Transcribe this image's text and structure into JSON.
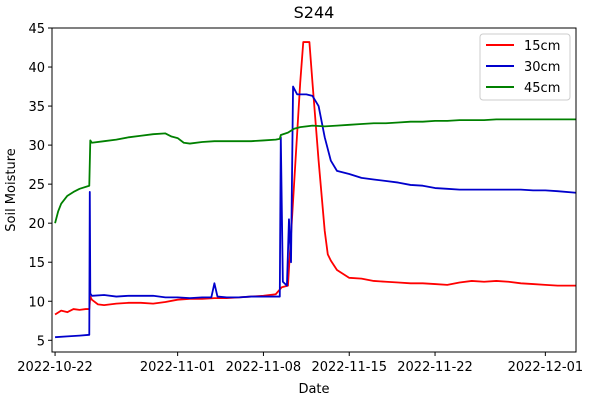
{
  "chart_data": {
    "type": "line",
    "title": "S244",
    "xlabel": "Date",
    "ylabel": "Soil Moisture",
    "x_axis_type": "date",
    "xlim": [
      "2022-10-21T18:00",
      "2022-12-03T12:00"
    ],
    "ylim": [
      3.5,
      45
    ],
    "x_ticks": [
      "2022-10-22",
      "2022-11-01",
      "2022-11-08",
      "2022-11-15",
      "2022-11-22",
      "2022-12-01"
    ],
    "y_ticks": [
      5,
      10,
      15,
      20,
      25,
      30,
      35,
      40,
      45
    ],
    "grid": false,
    "legend_position": "top-right",
    "series": [
      {
        "name": "15cm",
        "color": "#ff0000",
        "points": [
          [
            "2022-10-22T00:00",
            8.3
          ],
          [
            "2022-10-22T12:00",
            8.8
          ],
          [
            "2022-10-23T00:00",
            8.6
          ],
          [
            "2022-10-23T12:00",
            9.0
          ],
          [
            "2022-10-24T00:00",
            8.9
          ],
          [
            "2022-10-24T12:00",
            9.0
          ],
          [
            "2022-10-24T19:00",
            9.0
          ],
          [
            "2022-10-24T21:00",
            10.6
          ],
          [
            "2022-10-25T00:00",
            10.2
          ],
          [
            "2022-10-25T12:00",
            9.6
          ],
          [
            "2022-10-26T00:00",
            9.5
          ],
          [
            "2022-10-27T00:00",
            9.7
          ],
          [
            "2022-10-28T00:00",
            9.8
          ],
          [
            "2022-10-29T00:00",
            9.8
          ],
          [
            "2022-10-30T00:00",
            9.7
          ],
          [
            "2022-10-31T00:00",
            9.9
          ],
          [
            "2022-11-01T00:00",
            10.2
          ],
          [
            "2022-11-02T00:00",
            10.3
          ],
          [
            "2022-11-03T00:00",
            10.3
          ],
          [
            "2022-11-04T00:00",
            10.4
          ],
          [
            "2022-11-05T00:00",
            10.4
          ],
          [
            "2022-11-06T00:00",
            10.5
          ],
          [
            "2022-11-07T00:00",
            10.6
          ],
          [
            "2022-11-08T00:00",
            10.7
          ],
          [
            "2022-11-08T12:00",
            10.8
          ],
          [
            "2022-11-09T00:00",
            10.9
          ],
          [
            "2022-11-09T12:00",
            11.8
          ],
          [
            "2022-11-10T00:00",
            12.0
          ],
          [
            "2022-11-10T12:00",
            25.0
          ],
          [
            "2022-11-11T00:00",
            38.0
          ],
          [
            "2022-11-11T06:00",
            43.2
          ],
          [
            "2022-11-11T18:00",
            43.2
          ],
          [
            "2022-11-12T00:00",
            38.0
          ],
          [
            "2022-11-12T12:00",
            28.0
          ],
          [
            "2022-11-13T00:00",
            19.0
          ],
          [
            "2022-11-13T06:00",
            16.0
          ],
          [
            "2022-11-13T12:00",
            15.2
          ],
          [
            "2022-11-14T00:00",
            14.0
          ],
          [
            "2022-11-15T00:00",
            13.0
          ],
          [
            "2022-11-16T00:00",
            12.9
          ],
          [
            "2022-11-17T00:00",
            12.6
          ],
          [
            "2022-11-18T00:00",
            12.5
          ],
          [
            "2022-11-19T00:00",
            12.4
          ],
          [
            "2022-11-20T00:00",
            12.3
          ],
          [
            "2022-11-21T00:00",
            12.3
          ],
          [
            "2022-11-22T00:00",
            12.2
          ],
          [
            "2022-11-23T00:00",
            12.1
          ],
          [
            "2022-11-24T00:00",
            12.4
          ],
          [
            "2022-11-25T00:00",
            12.6
          ],
          [
            "2022-11-26T00:00",
            12.5
          ],
          [
            "2022-11-27T00:00",
            12.6
          ],
          [
            "2022-11-28T00:00",
            12.5
          ],
          [
            "2022-11-29T00:00",
            12.3
          ],
          [
            "2022-11-30T00:00",
            12.2
          ],
          [
            "2022-12-01T00:00",
            12.1
          ],
          [
            "2022-12-02T00:00",
            12.0
          ],
          [
            "2022-12-03T12:00",
            12.0
          ]
        ]
      },
      {
        "name": "30cm",
        "color": "#0000cc",
        "points": [
          [
            "2022-10-22T00:00",
            5.4
          ],
          [
            "2022-10-23T00:00",
            5.5
          ],
          [
            "2022-10-24T00:00",
            5.6
          ],
          [
            "2022-10-24T19:00",
            5.7
          ],
          [
            "2022-10-24T20:00",
            24.0
          ],
          [
            "2022-10-24T21:00",
            11.0
          ],
          [
            "2022-10-25T00:00",
            10.7
          ],
          [
            "2022-10-26T00:00",
            10.8
          ],
          [
            "2022-10-27T00:00",
            10.6
          ],
          [
            "2022-10-28T00:00",
            10.7
          ],
          [
            "2022-10-29T00:00",
            10.7
          ],
          [
            "2022-10-30T00:00",
            10.7
          ],
          [
            "2022-10-31T00:00",
            10.5
          ],
          [
            "2022-11-01T00:00",
            10.5
          ],
          [
            "2022-11-02T00:00",
            10.4
          ],
          [
            "2022-11-03T00:00",
            10.5
          ],
          [
            "2022-11-03T18:00",
            10.5
          ],
          [
            "2022-11-04T00:00",
            12.3
          ],
          [
            "2022-11-04T06:00",
            10.6
          ],
          [
            "2022-11-05T00:00",
            10.5
          ],
          [
            "2022-11-06T00:00",
            10.5
          ],
          [
            "2022-11-07T00:00",
            10.6
          ],
          [
            "2022-11-08T00:00",
            10.6
          ],
          [
            "2022-11-09T00:00",
            10.6
          ],
          [
            "2022-11-09T08:00",
            10.6
          ],
          [
            "2022-11-09T10:00",
            31.0
          ],
          [
            "2022-11-09T14:00",
            12.5
          ],
          [
            "2022-11-09T22:00",
            12.0
          ],
          [
            "2022-11-10T02:00",
            20.5
          ],
          [
            "2022-11-10T06:00",
            15.0
          ],
          [
            "2022-11-10T10:00",
            37.5
          ],
          [
            "2022-11-10T18:00",
            36.5
          ],
          [
            "2022-11-11T12:00",
            36.5
          ],
          [
            "2022-11-12T00:00",
            36.3
          ],
          [
            "2022-11-12T12:00",
            35.0
          ],
          [
            "2022-11-13T00:00",
            31.0
          ],
          [
            "2022-11-13T12:00",
            28.0
          ],
          [
            "2022-11-14T00:00",
            26.7
          ],
          [
            "2022-11-15T00:00",
            26.3
          ],
          [
            "2022-11-16T00:00",
            25.8
          ],
          [
            "2022-11-17T00:00",
            25.6
          ],
          [
            "2022-11-18T00:00",
            25.4
          ],
          [
            "2022-11-19T00:00",
            25.2
          ],
          [
            "2022-11-20T00:00",
            24.9
          ],
          [
            "2022-11-21T00:00",
            24.8
          ],
          [
            "2022-11-22T00:00",
            24.5
          ],
          [
            "2022-11-23T00:00",
            24.4
          ],
          [
            "2022-11-24T00:00",
            24.3
          ],
          [
            "2022-11-25T00:00",
            24.3
          ],
          [
            "2022-11-26T00:00",
            24.3
          ],
          [
            "2022-11-27T00:00",
            24.3
          ],
          [
            "2022-11-28T00:00",
            24.3
          ],
          [
            "2022-11-29T00:00",
            24.3
          ],
          [
            "2022-11-30T00:00",
            24.2
          ],
          [
            "2022-12-01T00:00",
            24.2
          ],
          [
            "2022-12-02T00:00",
            24.1
          ],
          [
            "2022-12-03T12:00",
            23.9
          ]
        ]
      },
      {
        "name": "45cm",
        "color": "#008000",
        "points": [
          [
            "2022-10-22T00:00",
            20.0
          ],
          [
            "2022-10-22T06:00",
            21.5
          ],
          [
            "2022-10-22T12:00",
            22.5
          ],
          [
            "2022-10-23T00:00",
            23.5
          ],
          [
            "2022-10-23T12:00",
            24.0
          ],
          [
            "2022-10-24T00:00",
            24.4
          ],
          [
            "2022-10-24T19:00",
            24.8
          ],
          [
            "2022-10-24T21:00",
            30.6
          ],
          [
            "2022-10-25T00:00",
            30.3
          ],
          [
            "2022-10-26T00:00",
            30.5
          ],
          [
            "2022-10-27T00:00",
            30.7
          ],
          [
            "2022-10-28T00:00",
            31.0
          ],
          [
            "2022-10-29T00:00",
            31.2
          ],
          [
            "2022-10-30T00:00",
            31.4
          ],
          [
            "2022-10-31T00:00",
            31.5
          ],
          [
            "2022-10-31T12:00",
            31.1
          ],
          [
            "2022-11-01T00:00",
            30.9
          ],
          [
            "2022-11-01T12:00",
            30.3
          ],
          [
            "2022-11-02T00:00",
            30.2
          ],
          [
            "2022-11-03T00:00",
            30.4
          ],
          [
            "2022-11-04T00:00",
            30.5
          ],
          [
            "2022-11-05T00:00",
            30.5
          ],
          [
            "2022-11-06T00:00",
            30.5
          ],
          [
            "2022-11-07T00:00",
            30.5
          ],
          [
            "2022-11-08T00:00",
            30.6
          ],
          [
            "2022-11-09T00:00",
            30.7
          ],
          [
            "2022-11-09T08:00",
            30.8
          ],
          [
            "2022-11-09T10:00",
            31.3
          ],
          [
            "2022-11-10T00:00",
            31.6
          ],
          [
            "2022-11-10T12:00",
            32.1
          ],
          [
            "2022-11-11T00:00",
            32.3
          ],
          [
            "2022-11-12T00:00",
            32.5
          ],
          [
            "2022-11-13T00:00",
            32.4
          ],
          [
            "2022-11-14T00:00",
            32.5
          ],
          [
            "2022-11-15T00:00",
            32.6
          ],
          [
            "2022-11-16T00:00",
            32.7
          ],
          [
            "2022-11-17T00:00",
            32.8
          ],
          [
            "2022-11-18T00:00",
            32.8
          ],
          [
            "2022-11-19T00:00",
            32.9
          ],
          [
            "2022-11-20T00:00",
            33.0
          ],
          [
            "2022-11-21T00:00",
            33.0
          ],
          [
            "2022-11-22T00:00",
            33.1
          ],
          [
            "2022-11-23T00:00",
            33.1
          ],
          [
            "2022-11-24T00:00",
            33.2
          ],
          [
            "2022-11-25T00:00",
            33.2
          ],
          [
            "2022-11-26T00:00",
            33.2
          ],
          [
            "2022-11-27T00:00",
            33.3
          ],
          [
            "2022-11-28T00:00",
            33.3
          ],
          [
            "2022-11-29T00:00",
            33.3
          ],
          [
            "2022-11-30T00:00",
            33.3
          ],
          [
            "2022-12-01T00:00",
            33.3
          ],
          [
            "2022-12-02T00:00",
            33.3
          ],
          [
            "2022-12-03T12:00",
            33.3
          ]
        ]
      }
    ]
  }
}
